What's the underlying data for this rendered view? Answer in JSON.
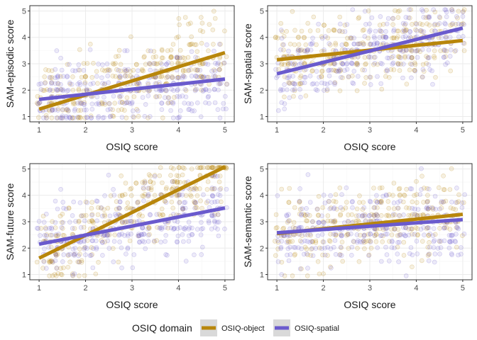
{
  "chart_data": [
    {
      "type": "scatter",
      "title": "",
      "xlabel": "OSIQ score",
      "ylabel": "SAM-episodic score",
      "xlim": [
        0.8,
        5.2
      ],
      "ylim": [
        0.8,
        5.2
      ],
      "xticks": [
        "1",
        "2",
        "3",
        "4",
        "5"
      ],
      "yticks": [
        "1",
        "2",
        "3",
        "4",
        "5"
      ],
      "grid": true,
      "series": [
        {
          "name": "OSIQ-object",
          "trend": {
            "x": [
              1,
              5
            ],
            "y": [
              1.28,
              3.42
            ]
          }
        },
        {
          "name": "OSIQ-spatial",
          "trend": {
            "x": [
              1,
              5
            ],
            "y": [
              1.65,
              2.42
            ]
          }
        }
      ]
    },
    {
      "type": "scatter",
      "title": "",
      "xlabel": "OSIQ score",
      "ylabel": "SAM-spatial score",
      "xlim": [
        0.8,
        5.2
      ],
      "ylim": [
        0.8,
        5.2
      ],
      "xticks": [
        "1",
        "2",
        "3",
        "4",
        "5"
      ],
      "yticks": [
        "1",
        "2",
        "3",
        "4",
        "5"
      ],
      "grid": true,
      "series": [
        {
          "name": "OSIQ-object",
          "trend": {
            "x": [
              1,
              5
            ],
            "y": [
              3.15,
              3.88
            ]
          }
        },
        {
          "name": "OSIQ-spatial",
          "trend": {
            "x": [
              1,
              5
            ],
            "y": [
              2.62,
              4.35
            ]
          }
        }
      ]
    },
    {
      "type": "scatter",
      "title": "",
      "xlabel": "OSIQ score",
      "ylabel": "SAM-future score",
      "xlim": [
        0.8,
        5.2
      ],
      "ylim": [
        0.8,
        5.2
      ],
      "xticks": [
        "1",
        "2",
        "3",
        "4",
        "5"
      ],
      "yticks": [
        "1",
        "2",
        "3",
        "4",
        "5"
      ],
      "grid": true,
      "series": [
        {
          "name": "OSIQ-object",
          "trend": {
            "x": [
              1,
              5
            ],
            "y": [
              1.62,
              5.08
            ]
          }
        },
        {
          "name": "OSIQ-spatial",
          "trend": {
            "x": [
              1,
              5
            ],
            "y": [
              2.15,
              3.52
            ]
          }
        }
      ]
    },
    {
      "type": "scatter",
      "title": "",
      "xlabel": "OSIQ score",
      "ylabel": "SAM-semantic score",
      "xlim": [
        0.8,
        5.2
      ],
      "ylim": [
        0.8,
        5.2
      ],
      "xticks": [
        "1",
        "2",
        "3",
        "4",
        "5"
      ],
      "yticks": [
        "1",
        "2",
        "3",
        "4",
        "5"
      ],
      "grid": true,
      "series": [
        {
          "name": "OSIQ-object",
          "trend": {
            "x": [
              1,
              5
            ],
            "y": [
              2.55,
              3.28
            ]
          }
        },
        {
          "name": "OSIQ-spatial",
          "trend": {
            "x": [
              1,
              5
            ],
            "y": [
              2.58,
              3.08
            ]
          }
        }
      ]
    }
  ],
  "legend": {
    "title": "OSIQ domain",
    "placement": "bottom",
    "items": [
      {
        "label": "OSIQ-object",
        "color": "#b8860b"
      },
      {
        "label": "OSIQ-spatial",
        "color": "#6a5acd"
      }
    ]
  },
  "colors": {
    "object": "#b8860b",
    "spatial": "#6a5acd",
    "panel_border": "#333333",
    "grid_major": "#ebebeb",
    "grid_minor": "#f5f5f5",
    "legend_key_bg": "#d9d9d9"
  }
}
